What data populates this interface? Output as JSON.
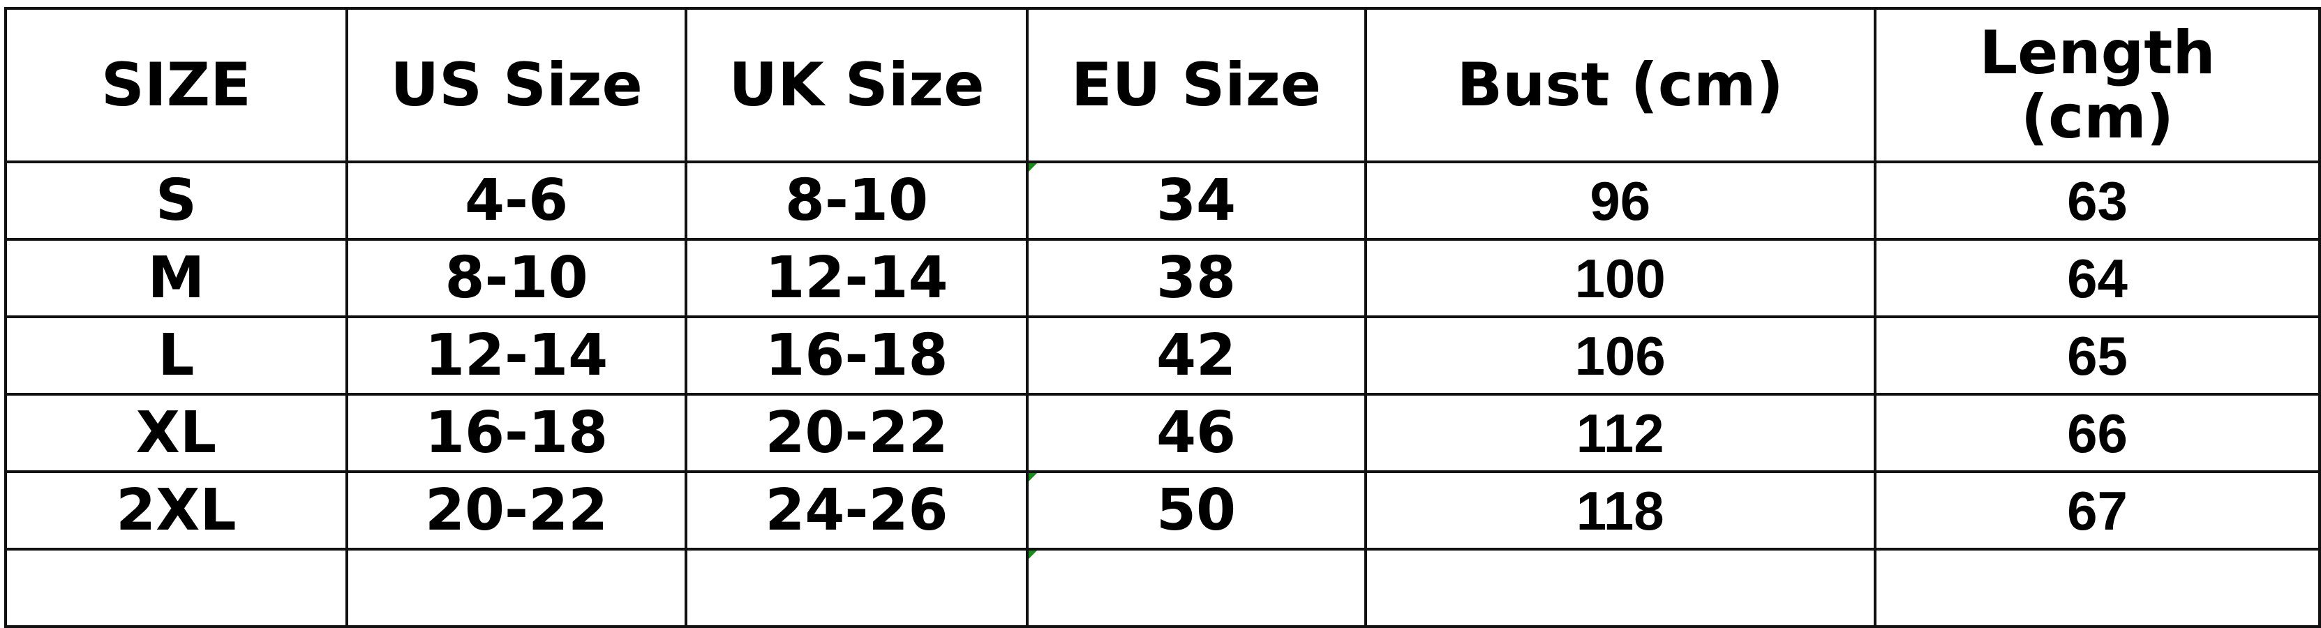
{
  "headers": [
    "SIZE",
    "US Size",
    "UK Size",
    "EU Size",
    "Bust (cm)",
    "Length (cm)"
  ],
  "rows": [
    [
      "S",
      "4-6",
      "8-10",
      "34",
      "96",
      "63"
    ],
    [
      "M",
      "8-10",
      "12-14",
      "38",
      "100",
      "64"
    ],
    [
      "L",
      "12-14",
      "16-18",
      "42",
      "106",
      "65"
    ],
    [
      "XL",
      "16-18",
      "20-22",
      "46",
      "112",
      "66"
    ],
    [
      "2XL",
      "20-22",
      "24-26",
      "50",
      "118",
      "67"
    ]
  ],
  "colors": {
    "border": "#111111",
    "text": "#000000",
    "cell_marker": "#1a8a1a"
  }
}
